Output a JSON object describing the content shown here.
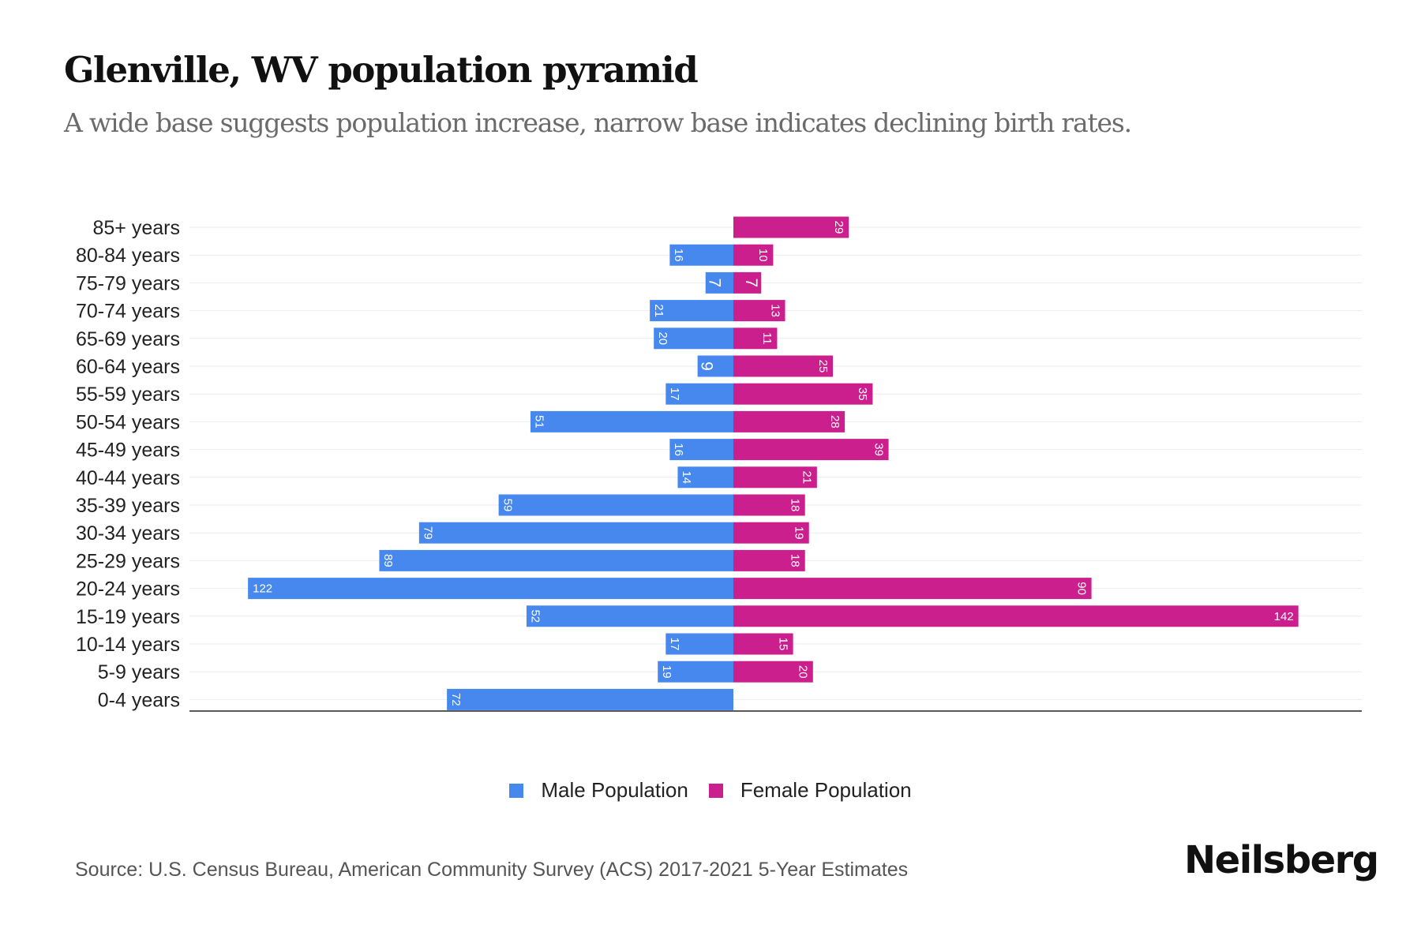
{
  "header": {
    "title": "Glenville, WV population pyramid",
    "subtitle": "A wide base suggests population increase, narrow base indicates declining birth rates."
  },
  "chart_data": {
    "type": "bar",
    "orientation": "horizontal-diverging",
    "title": "Glenville, WV population pyramid",
    "subtitle": "A wide base suggests population increase, narrow base indicates declining birth rates.",
    "xlabel": "",
    "ylabel": "",
    "grid": true,
    "legend_position": "bottom-center",
    "categories": [
      "85+ years",
      "80-84 years",
      "75-79 years",
      "70-74 years",
      "65-69 years",
      "60-64 years",
      "55-59 years",
      "50-54 years",
      "45-49 years",
      "40-44 years",
      "35-39 years",
      "30-34 years",
      "25-29 years",
      "20-24 years",
      "15-19 years",
      "10-14 years",
      "5-9 years",
      "0-4 years"
    ],
    "series": [
      {
        "name": "Male Population",
        "color": "#4688ee",
        "side": "left",
        "values": [
          0,
          16,
          7,
          21,
          20,
          9,
          17,
          51,
          16,
          14,
          59,
          79,
          89,
          122,
          52,
          17,
          19,
          72
        ]
      },
      {
        "name": "Female Population",
        "color": "#cc1f8e",
        "side": "right",
        "values": [
          29,
          10,
          7,
          13,
          11,
          25,
          35,
          28,
          39,
          21,
          18,
          19,
          18,
          90,
          142,
          15,
          20,
          0
        ]
      }
    ]
  },
  "legend": {
    "male_label": "Male Population",
    "female_label": "Female Population"
  },
  "footer": {
    "source": "Source: U.S. Census Bureau, American Community Survey (ACS) 2017-2021 5-Year Estimates",
    "logo": "Neilsberg"
  }
}
